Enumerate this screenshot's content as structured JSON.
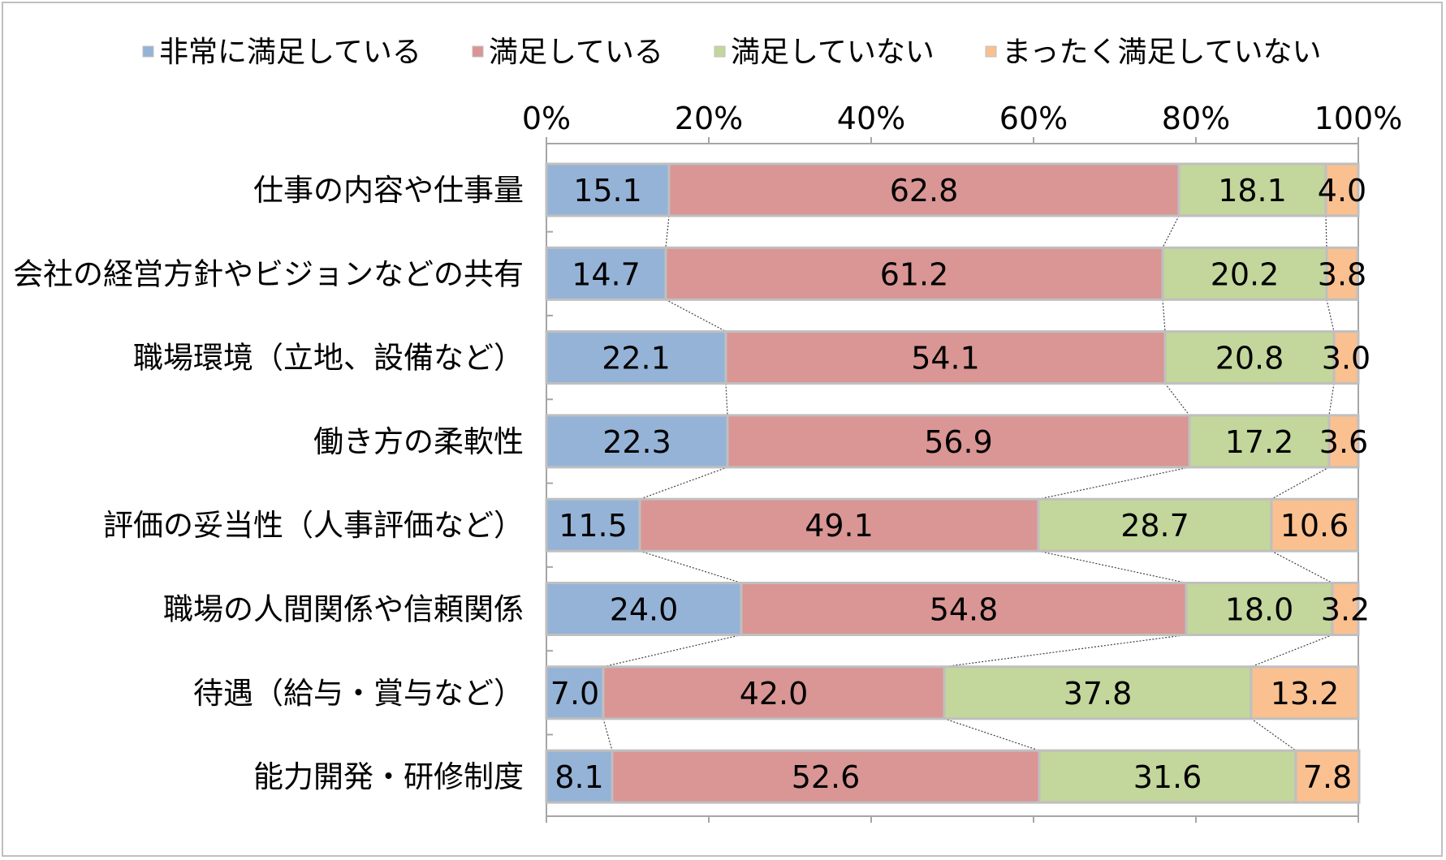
{
  "chart_data": {
    "type": "bar",
    "orientation": "horizontal",
    "stacked": "percent",
    "categories": [
      "仕事の内容や仕事量",
      "会社の経営方針やビジョンなどの共有",
      "職場環境（立地、設備など）",
      "働き方の柔軟性",
      "評価の妥当性（人事評価など）",
      "職場の人間関係や信頼関係",
      "待遇（給与・賞与など）",
      "能力開発・研修制度"
    ],
    "series": [
      {
        "name": "非常に満足している",
        "color": "#95b3d7",
        "values": [
          15.1,
          14.7,
          22.1,
          22.3,
          11.5,
          24.0,
          7.0,
          8.1
        ]
      },
      {
        "name": "満足している",
        "color": "#d99694",
        "values": [
          62.8,
          61.2,
          54.1,
          56.9,
          49.1,
          54.8,
          42.0,
          52.6
        ]
      },
      {
        "name": "満足していない",
        "color": "#c3d69b",
        "values": [
          18.1,
          20.2,
          20.8,
          17.2,
          28.7,
          18.0,
          37.8,
          31.6
        ]
      },
      {
        "name": "まったく満足していない",
        "color": "#fac090",
        "values": [
          4.0,
          3.8,
          3.0,
          3.6,
          10.6,
          3.2,
          13.2,
          7.8
        ]
      }
    ],
    "x_ticks": [
      "0%",
      "20%",
      "40%",
      "60%",
      "80%",
      "100%"
    ],
    "xlim": [
      0,
      100
    ],
    "title": "",
    "xlabel": "",
    "ylabel": "",
    "grid": false,
    "series_lines": true,
    "legend_position": "top",
    "bar_border_color": "#bfbfbf"
  }
}
